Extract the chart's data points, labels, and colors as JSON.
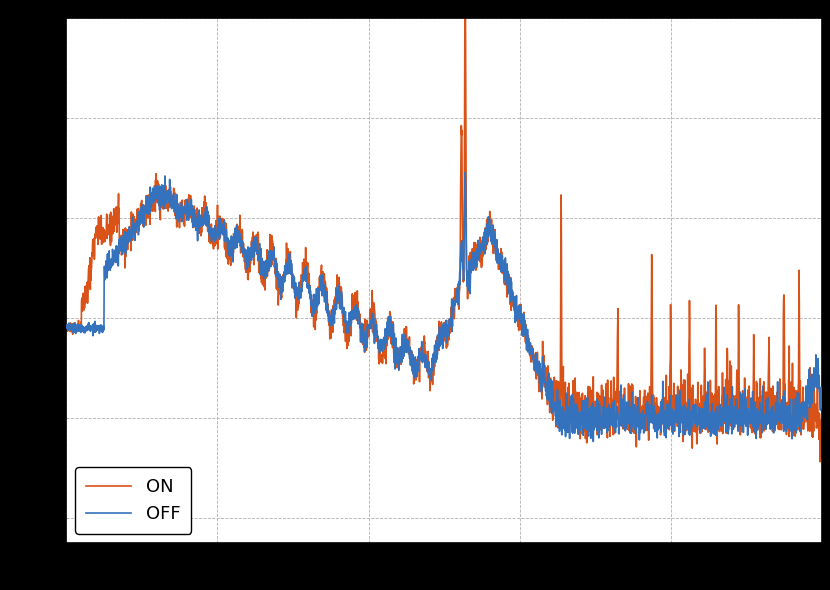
{
  "color_off": "#3472bd",
  "color_on": "#d95319",
  "background_color": "#000000",
  "axes_bg": "#ffffff",
  "grid_color": "#b0b0b0",
  "legend_labels": [
    "OFF",
    "ON"
  ],
  "fig_width": 8.3,
  "fig_height": 5.9,
  "dpi": 100,
  "linewidth_off": 1.2,
  "linewidth_on": 1.2,
  "ylim_low": -0.05,
  "ylim_high": 1.0,
  "xlim_low": 0.0,
  "xlim_high": 1.0
}
